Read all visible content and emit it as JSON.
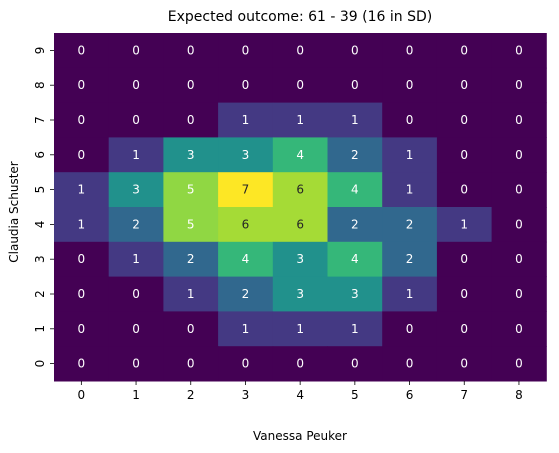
{
  "chart_data": {
    "type": "heatmap",
    "title": "Expected outcome: 61 - 39 (16 in SD)",
    "xlabel": "Vanessa Peuker",
    "ylabel": "Claudia Schuster",
    "x_categories": [
      "0",
      "1",
      "2",
      "3",
      "4",
      "5",
      "6",
      "7",
      "8"
    ],
    "y_categories_top_to_bottom": [
      "9",
      "8",
      "7",
      "6",
      "5",
      "4",
      "3",
      "2",
      "1",
      "0"
    ],
    "values_top_to_bottom": [
      [
        0,
        0,
        0,
        0,
        0,
        0,
        0,
        0,
        0
      ],
      [
        0,
        0,
        0,
        0,
        0,
        0,
        0,
        0,
        0
      ],
      [
        0,
        0,
        0,
        1,
        1,
        1,
        0,
        0,
        0
      ],
      [
        0,
        1,
        3,
        3,
        4,
        2,
        1,
        0,
        0
      ],
      [
        1,
        3,
        5,
        7,
        6,
        4,
        1,
        0,
        0
      ],
      [
        1,
        2,
        5,
        6,
        6,
        2,
        2,
        1,
        0
      ],
      [
        0,
        1,
        2,
        4,
        3,
        4,
        2,
        0,
        0
      ],
      [
        0,
        0,
        1,
        2,
        3,
        3,
        1,
        0,
        0
      ],
      [
        0,
        0,
        0,
        1,
        1,
        1,
        0,
        0,
        0
      ],
      [
        0,
        0,
        0,
        0,
        0,
        0,
        0,
        0,
        0
      ]
    ],
    "value_range": [
      0,
      7
    ],
    "colormap": "viridis",
    "colors": {
      "0": "#440154",
      "1": "#443983",
      "2": "#31688e",
      "3": "#21918c",
      "4": "#35b779",
      "5": "#90d743",
      "6": "#a5db36",
      "7": "#fde725"
    },
    "annotation_colors": {
      "light": "#ffffff",
      "dark": "#262626"
    }
  }
}
